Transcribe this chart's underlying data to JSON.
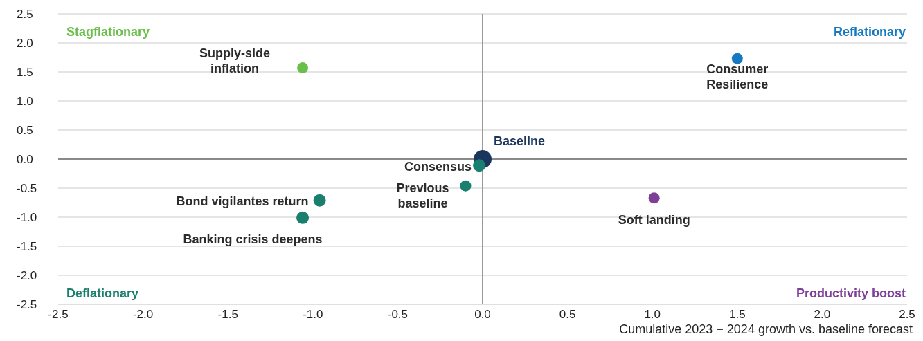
{
  "chart_data": {
    "type": "scatter",
    "xlabel": "Cumulative 2023 − 2024 growth vs. baseline forecast",
    "xlim": [
      -2.5,
      2.5
    ],
    "ylim": [
      -2.5,
      2.5
    ],
    "xticks": [
      {
        "value": -2.5,
        "label": "-2.5"
      },
      {
        "value": -2,
        "label": "-2.0"
      },
      {
        "value": -1.5,
        "label": "-1.5"
      },
      {
        "value": -1,
        "label": "-1.0"
      },
      {
        "value": -0.5,
        "label": "-0.5"
      },
      {
        "value": 0,
        "label": "0.0"
      },
      {
        "value": 0.5,
        "label": "0.5"
      },
      {
        "value": 1,
        "label": "1.0"
      },
      {
        "value": 1.5,
        "label": "1.5"
      },
      {
        "value": 2,
        "label": "2.0"
      },
      {
        "value": 2.5,
        "label": "2.5"
      }
    ],
    "yticks": [
      {
        "value": -2.5,
        "label": "-2.5"
      },
      {
        "value": -2,
        "label": "-2.0"
      },
      {
        "value": -1.5,
        "label": "-1.5"
      },
      {
        "value": -1,
        "label": "-1.0"
      },
      {
        "value": -0.5,
        "label": "-0.5"
      },
      {
        "value": 0,
        "label": "0.0"
      },
      {
        "value": 0.5,
        "label": "0.5"
      },
      {
        "value": 1,
        "label": "1.0"
      },
      {
        "value": 1.5,
        "label": "1.5"
      },
      {
        "value": 2,
        "label": "2.0"
      },
      {
        "value": 2.5,
        "label": "2.5"
      }
    ],
    "grid": "y",
    "legend": false,
    "marker": "circle",
    "ref_lines": [
      {
        "axis": "x",
        "value": 0,
        "color": "#9a9a9a"
      },
      {
        "axis": "y",
        "value": 0,
        "color": "#8a8a8a"
      }
    ],
    "annotations": [
      "Stagflationary",
      "Reflationary",
      "Deflationary",
      "Productivity boost"
    ],
    "series": [
      {
        "name": "Baseline",
        "color": "#1b365d",
        "x": [
          0
        ],
        "values": [
          0
        ]
      },
      {
        "name": "Consensus",
        "color": "#1a7f6e",
        "x": [
          -0.02
        ],
        "values": [
          -0.11
        ]
      },
      {
        "name": "Previous baseline",
        "color": "#1a7f6e",
        "x": [
          -0.1
        ],
        "values": [
          -0.46
        ]
      },
      {
        "name": "Supply-side inflation",
        "color": "#6abf4b",
        "x": [
          -1.06
        ],
        "values": [
          1.57
        ]
      },
      {
        "name": "Consumer Resilience",
        "color": "#1479c0",
        "x": [
          1.5
        ],
        "values": [
          1.73
        ]
      },
      {
        "name": "Soft landing",
        "color": "#7d3f98",
        "x": [
          1.01
        ],
        "values": [
          -0.67
        ]
      },
      {
        "name": "Bond vigilantes return",
        "color": "#1a7f6e",
        "x": [
          -0.96
        ],
        "values": [
          -0.71
        ]
      },
      {
        "name": "Banking crisis deepens",
        "color": "#1a7f6e",
        "x": [
          -1.06
        ],
        "values": [
          -1.01
        ]
      }
    ]
  }
}
